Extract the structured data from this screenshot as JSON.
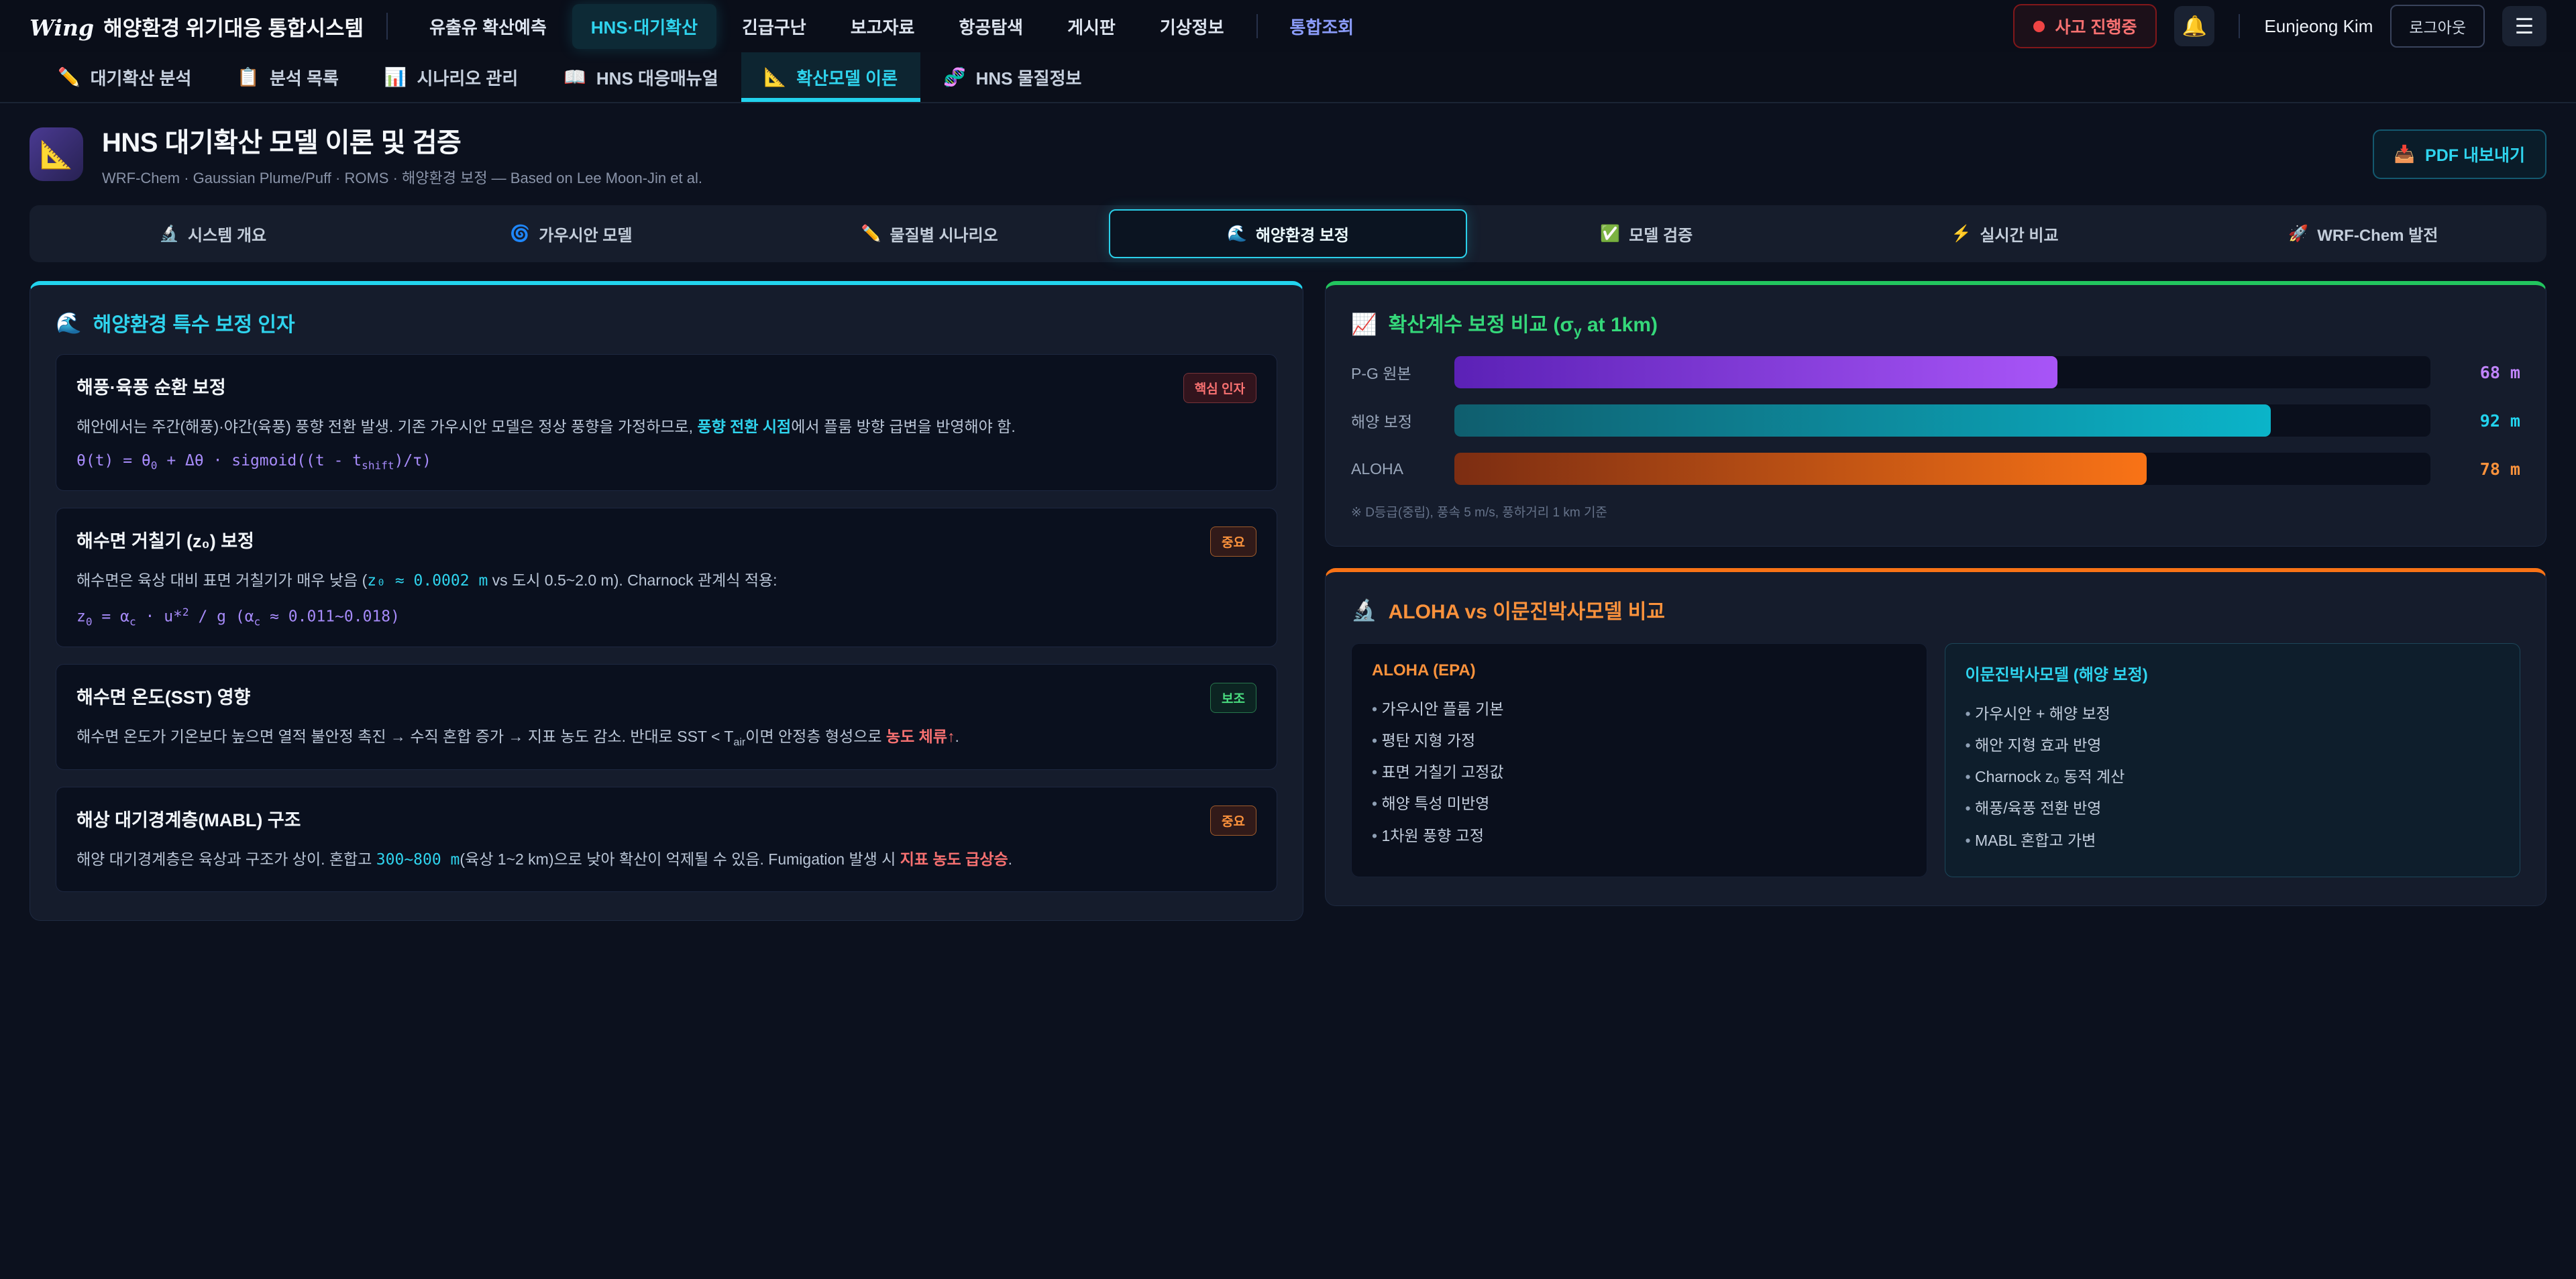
{
  "topnav": {
    "brand_logo": "Wing",
    "brand_text": "해양환경 위기대응 통합시스템",
    "items": [
      {
        "label": "유출유 확산예측"
      },
      {
        "label": "HNS·대기확산"
      },
      {
        "label": "긴급구난"
      },
      {
        "label": "보고자료"
      },
      {
        "label": "항공탐색"
      },
      {
        "label": "게시판"
      },
      {
        "label": "기상정보"
      },
      {
        "label": "통합조회"
      }
    ],
    "incident_label": "사고 진행중",
    "bell_icon": "🔔",
    "user_name": "Eunjeong Kim",
    "logout_label": "로그아웃",
    "menu_icon": "☰"
  },
  "subnav": {
    "items": [
      {
        "icon": "✏️",
        "label": "대기확산 분석"
      },
      {
        "icon": "📋",
        "label": "분석 목록"
      },
      {
        "icon": "📊",
        "label": "시나리오 관리"
      },
      {
        "icon": "📖",
        "label": "HNS 대응매뉴얼"
      },
      {
        "icon": "📐",
        "label": "확산모델 이론"
      },
      {
        "icon": "🧬",
        "label": "HNS 물질정보"
      }
    ]
  },
  "header": {
    "icon": "📐",
    "title": "HNS 대기확산 모델 이론 및 검증",
    "subtitle": "WRF-Chem · Gaussian Plume/Puff · ROMS · 해양환경 보정 — Based on Lee Moon-Jin et al.",
    "pdf_icon": "📥",
    "pdf_label": "PDF 내보내기"
  },
  "segments": [
    {
      "icon": "🔬",
      "label": "시스템 개요"
    },
    {
      "icon": "🌀",
      "label": "가우시안 모델"
    },
    {
      "icon": "✏️",
      "label": "물질별 시나리오"
    },
    {
      "icon": "🌊",
      "label": "해양환경 보정"
    },
    {
      "icon": "✅",
      "label": "모델 검증"
    },
    {
      "icon": "⚡",
      "label": "실시간 비교"
    },
    {
      "icon": "🚀",
      "label": "WRF-Chem 발전"
    }
  ],
  "left_panel": {
    "icon": "🌊",
    "title": "해양환경 특수 보정 인자",
    "cards": [
      {
        "title": "해풍·육풍 순환 보정",
        "badge": "핵심 인자",
        "body_html": "해안에서는 주간(해풍)·야간(육풍) 풍향 전환 발생. 기존 가우시안 모델은 정상 풍향을 가정하므로, <b class='hl'>풍향 전환 시점</b>에서 플룸 방향 급변을 반영해야 함.",
        "formula_html": "θ(t) = θ<sub>0</sub> + Δθ · sigmoid((t - t<sub>shift</sub>)/τ)"
      },
      {
        "title": "해수면 거칠기 (z₀) 보정",
        "badge": "중요",
        "body_html": "해수면은 육상 대비 표면 거칠기가 매우 낮음 (<span class='mono'>z₀ ≈ 0.0002 m</span> vs 도시 0.5~2.0 m). Charnock 관계식 적용:",
        "formula_html": "z<sub>0</sub> = α<sub>c</sub> · u*<sup>2</sup> / g (α<sub>c</sub> ≈ 0.011~0.018)"
      },
      {
        "title": "해수면 온도(SST) 영향",
        "badge": "보조",
        "body_html": "해수면 온도가 기온보다 높으면 열적 불안정 촉진 → 수직 혼합 증가 → 지표 농도 감소. 반대로 SST &lt; T<sub>air</sub>이면 안정층 형성으로 <b class='red'>농도 체류↑</b>.",
        "formula_html": ""
      },
      {
        "title": "해상 대기경계층(MABL) 구조",
        "badge": "중요",
        "body_html": "해양 대기경계층은 육상과 구조가 상이. 혼합고 <span class='mono'>300~800 m</span>(육상 1~2 km)으로 낮아 확산이 억제될 수 있음. Fumigation 발생 시 <b class='red'>지표 농도 급상승</b>.",
        "formula_html": ""
      }
    ]
  },
  "right_top": {
    "icon": "📈",
    "title_html": "확산계수 보정 비교 (σ<sub>y</sub> at 1km)",
    "scale_max": 110,
    "bars": [
      {
        "label": "P-G 원본",
        "value": 68,
        "display": "68 m",
        "color_from": "#5b21b6",
        "color_to": "#a855f7"
      },
      {
        "label": "해양 보정",
        "value": 92,
        "display": "92 m",
        "color_from": "#0f5e6e",
        "color_to": "#0bb4c9"
      },
      {
        "label": "ALOHA",
        "value": 78,
        "display": "78 m",
        "color_from": "#7c2d12",
        "color_to": "#f97316"
      }
    ],
    "note": "※ D등급(중립), 풍속 5 m/s, 풍하거리 1 km 기준"
  },
  "right_bottom": {
    "icon": "🔬",
    "title": "ALOHA vs 이문진박사모델 비교",
    "col_a": {
      "title": "ALOHA (EPA)",
      "items": [
        "가우시안 플룸 기본",
        "평탄 지형 가정",
        "표면 거칠기 고정값",
        "해양 특성 미반영",
        "1차원 풍향 고정"
      ]
    },
    "col_b": {
      "title": "이문진박사모델 (해양 보정)",
      "items": [
        "가우시안 + 해양 보정",
        "해안 지형 효과 반영",
        "Charnock z₀ 동적 계산",
        "해풍/육풍 전환 반영",
        "MABL 혼합고 가변"
      ]
    }
  },
  "chart_data": {
    "type": "bar",
    "title": "확산계수 보정 비교 (σy at 1km)",
    "categories": [
      "P-G 원본",
      "해양 보정",
      "ALOHA"
    ],
    "values": [
      68,
      92,
      78
    ],
    "unit": "m",
    "xlim": [
      0,
      110
    ],
    "orientation": "horizontal",
    "note": "※ D등급(중립), 풍속 5 m/s, 풍하거리 1 km 기준"
  },
  "colors": {
    "accent_cyan": "#22d3ee",
    "accent_green": "#22c55e",
    "accent_orange": "#f97316",
    "accent_purple": "#a855f7",
    "status_red": "#ef4444"
  }
}
